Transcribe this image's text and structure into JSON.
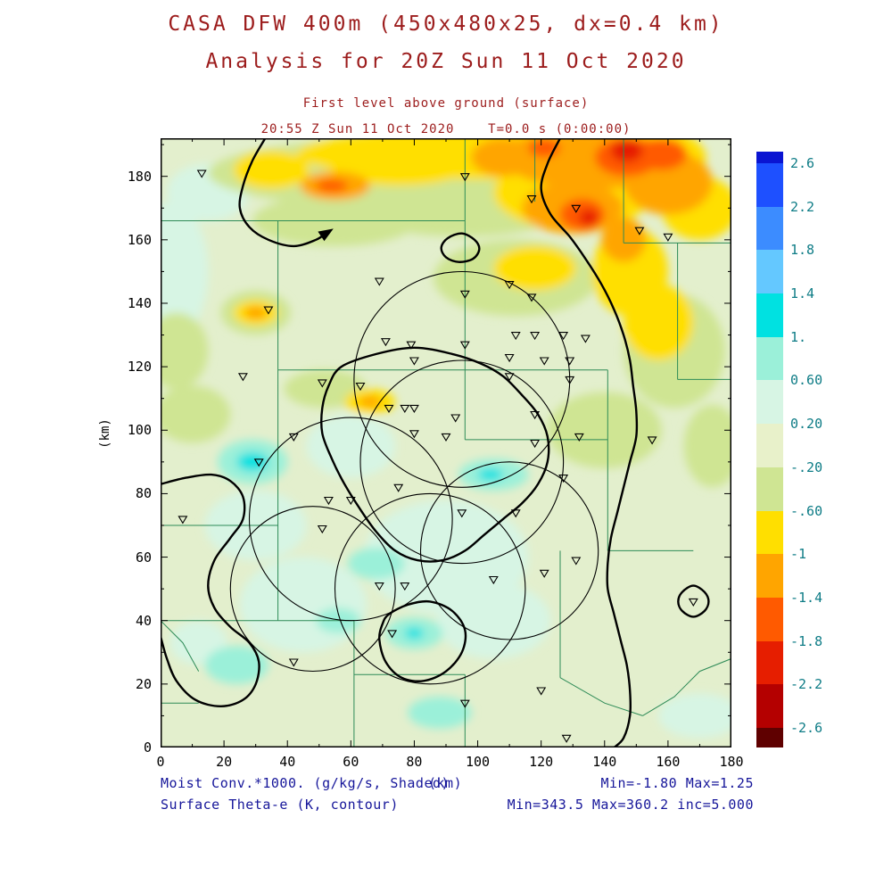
{
  "header": {
    "title_line1": "CASA DFW 400m (450x480x25, dx=0.4 km)",
    "title_line2": "Analysis for 20Z Sun 11 Oct 2020",
    "subtitle_line1": "First level above ground (surface)",
    "subtitle_line2": "20:55 Z Sun 11 Oct 2020    T=0.0 s (0:00:00)",
    "title_color": "#9c1c1c"
  },
  "axes": {
    "y_axis_label": "(km)"
  },
  "footer": {
    "shaded_label": "Moist Conv.*1000. (g/kg/s, Shaded)",
    "x_unit": "(km)",
    "shaded_minmax": "Min=-1.80 Max=1.25",
    "contour_label": "Surface Theta-e (K, contour)",
    "contour_minmax": "Min=343.5 Max=360.2 inc=5.000",
    "text_color": "#16169a"
  },
  "chart_data": {
    "type": "heatmap",
    "subtype": "filled-contour-weather-map with theta-e contours, radar range rings and station markers",
    "title": "CASA DFW 400m (450x480x25, dx=0.4 km) Analysis for 20Z Sun 11 Oct 2020",
    "subtitle": "First level above ground (surface), 20:55 Z Sun 11 Oct 2020, T=0.0 s (0:00:00)",
    "xlabel": "(km)",
    "ylabel": "(km)",
    "xlim": [
      0,
      180
    ],
    "ylim": [
      0,
      192
    ],
    "x_major_ticks": [
      0,
      20,
      40,
      60,
      80,
      100,
      120,
      140,
      160,
      180
    ],
    "y_major_ticks": [
      0,
      20,
      40,
      60,
      80,
      100,
      120,
      140,
      160,
      180
    ],
    "minor_tick_step_km": 10,
    "shaded_field": {
      "name": "Moist Conv.*1000. (g/kg/s)",
      "min": -1.8,
      "max": 1.25
    },
    "contour_field": {
      "name": "Surface Theta-e (K)",
      "min": 343.5,
      "max": 360.2,
      "inc": 5.0
    },
    "colorbar": {
      "tick_labels": [
        "2.6",
        "2.2",
        "1.8",
        "1.4",
        "1.",
        "0.60",
        "0.20",
        "-.20",
        "-.60",
        "-1",
        "-1.4",
        "-1.8",
        "-2.2",
        "-2.6"
      ],
      "levels_top_to_bottom": [
        2.6,
        2.2,
        1.8,
        1.4,
        1.0,
        0.6,
        0.2,
        -0.2,
        -0.6,
        -1.0,
        -1.4,
        -1.8,
        -2.2,
        -2.6
      ],
      "segment_colors_top_to_bottom": [
        "#0a14d2",
        "#1e50ff",
        "#3c8cff",
        "#64c8ff",
        "#00e1e1",
        "#9bf0d9",
        "#d7f5e4",
        "#e8f1ca",
        "#cfe593",
        "#ffdf00",
        "#ffa500",
        "#ff5a00",
        "#e61e00",
        "#b40000",
        "#5f0000"
      ],
      "label_color": "#0e7c86"
    },
    "base_color": "#e3efcd",
    "county_color": "#2e8b57",
    "field_blobs": [
      [
        45,
        45,
        20,
        15,
        "#d7f5e4"
      ],
      [
        90,
        60,
        26,
        18,
        "#d7f5e4"
      ],
      [
        30,
        70,
        16,
        11,
        "#d7f5e4"
      ],
      [
        3,
        150,
        12,
        22,
        "#d7f5e4"
      ],
      [
        15,
        175,
        13,
        9,
        "#d7f5e4"
      ],
      [
        170,
        10,
        13,
        7,
        "#d7f5e4"
      ],
      [
        12,
        33,
        9,
        7,
        "#d7f5e4"
      ],
      [
        60,
        95,
        14,
        10,
        "#d7f5e4"
      ],
      [
        105,
        40,
        18,
        12,
        "#d7f5e4"
      ],
      [
        90,
        181,
        75,
        12,
        "#cfe593"
      ],
      [
        95,
        170,
        34,
        9,
        "#cfe593"
      ],
      [
        55,
        166,
        26,
        8,
        "#cfe593"
      ],
      [
        162,
        125,
        16,
        18,
        "#cfe593"
      ],
      [
        112,
        148,
        26,
        12,
        "#cfe593"
      ],
      [
        10,
        105,
        12,
        9,
        "#cfe593"
      ],
      [
        5,
        125,
        10,
        12,
        "#cfe593"
      ],
      [
        174,
        95,
        9,
        13,
        "#cfe593"
      ],
      [
        52,
        113,
        13,
        6,
        "#cfe593"
      ],
      [
        30,
        137,
        11,
        7,
        "#cfe593"
      ],
      [
        140,
        100,
        18,
        12,
        "#cfe593"
      ],
      [
        105,
        187,
        62,
        8,
        "#ffdf00"
      ],
      [
        75,
        183,
        22,
        6,
        "#ffdf00"
      ],
      [
        35,
        182,
        12,
        6,
        "#ffdf00"
      ],
      [
        130,
        175,
        25,
        12,
        "#ffdf00"
      ],
      [
        148,
        150,
        12,
        14,
        "#ffdf00"
      ],
      [
        157,
        134,
        11,
        12,
        "#ffdf00"
      ],
      [
        170,
        170,
        12,
        10,
        "#ffdf00"
      ],
      [
        118,
        151,
        13,
        7,
        "#ffdf00"
      ],
      [
        30,
        137,
        7,
        4,
        "#ffdf00"
      ],
      [
        66,
        109,
        8,
        4,
        "#ffdf00"
      ],
      [
        150,
        186,
        22,
        10,
        "#ffdf00"
      ],
      [
        137,
        185,
        28,
        9,
        "#ffa500"
      ],
      [
        130,
        170,
        16,
        8,
        "#ffa500"
      ],
      [
        160,
        178,
        14,
        10,
        "#ffa500"
      ],
      [
        108,
        186,
        10,
        6,
        "#ffa500"
      ],
      [
        55,
        177,
        11,
        4.5,
        "#ffa500"
      ],
      [
        146,
        160,
        7,
        7,
        "#ffa500"
      ],
      [
        66,
        109,
        3.5,
        1.8,
        "#ffa500"
      ],
      [
        30,
        137,
        3.5,
        2,
        "#ffa500"
      ],
      [
        120,
        188,
        10,
        5,
        "#ffa500"
      ],
      [
        147,
        186,
        10,
        6,
        "#ff5a00"
      ],
      [
        158,
        187,
        8,
        5,
        "#ff5a00"
      ],
      [
        133,
        168,
        7,
        5,
        "#ff5a00"
      ],
      [
        54,
        177,
        5,
        2,
        "#ff5a00"
      ],
      [
        121,
        189,
        5,
        3,
        "#ff5a00"
      ],
      [
        147,
        188,
        5,
        3.5,
        "#e61e00"
      ],
      [
        135,
        167,
        3,
        2.5,
        "#e61e00"
      ],
      [
        29,
        90,
        11,
        7,
        "#9bf0d9"
      ],
      [
        105,
        86,
        11,
        5,
        "#9bf0d9"
      ],
      [
        68,
        58,
        9,
        5,
        "#9bf0d9"
      ],
      [
        80,
        36,
        9,
        5,
        "#9bf0d9"
      ],
      [
        24,
        26,
        10,
        6,
        "#9bf0d9"
      ],
      [
        88,
        11,
        10,
        5,
        "#9bf0d9"
      ],
      [
        56,
        40,
        7,
        4,
        "#9bf0d9"
      ],
      [
        29,
        90,
        5,
        3,
        "#00e1e1"
      ],
      [
        104,
        86,
        4,
        2,
        "#00e1e1"
      ],
      [
        80,
        36,
        3,
        1.8,
        "#00e1e1"
      ]
    ],
    "county_segments": [
      [
        [
          0,
          166
        ],
        [
          96,
          166
        ]
      ],
      [
        [
          96,
          192
        ],
        [
          96,
          97
        ]
      ],
      [
        [
          37,
          166
        ],
        [
          37,
          40
        ]
      ],
      [
        [
          37,
          119
        ],
        [
          141,
          119
        ]
      ],
      [
        [
          0,
          70
        ],
        [
          37,
          70
        ]
      ],
      [
        [
          146,
          192
        ],
        [
          146,
          159
        ]
      ],
      [
        [
          146,
          159
        ],
        [
          180,
          159
        ]
      ],
      [
        [
          163,
          159
        ],
        [
          163,
          116
        ]
      ],
      [
        [
          163,
          116
        ],
        [
          180,
          116
        ]
      ],
      [
        [
          96,
          97
        ],
        [
          141,
          97
        ]
      ],
      [
        [
          141,
          119
        ],
        [
          141,
          62
        ]
      ],
      [
        [
          141,
          62
        ],
        [
          168,
          62
        ]
      ],
      [
        [
          0,
          40
        ],
        [
          37,
          40
        ]
      ],
      [
        [
          37,
          40
        ],
        [
          61,
          40
        ]
      ],
      [
        [
          61,
          40
        ],
        [
          61,
          0
        ]
      ],
      [
        [
          61,
          23
        ],
        [
          96,
          23
        ]
      ],
      [
        [
          96,
          23
        ],
        [
          96,
          0
        ]
      ],
      [
        [
          126,
          62
        ],
        [
          126,
          22
        ]
      ],
      [
        [
          126,
          22
        ],
        [
          140,
          14
        ],
        [
          152,
          10
        ]
      ],
      [
        [
          152,
          10
        ],
        [
          162,
          16
        ],
        [
          170,
          24
        ],
        [
          180,
          28
        ]
      ],
      [
        [
          0,
          40
        ],
        [
          7,
          33
        ],
        [
          12,
          24
        ]
      ],
      [
        [
          0,
          14
        ],
        [
          12,
          14
        ]
      ],
      [
        [
          118,
          192
        ],
        [
          118,
          172
        ]
      ]
    ],
    "range_rings": [
      [
        95,
        116,
        34
      ],
      [
        95,
        90,
        32
      ],
      [
        60,
        72,
        32
      ],
      [
        85,
        50,
        30
      ],
      [
        110,
        62,
        28
      ],
      [
        48,
        50,
        26
      ]
    ],
    "theta_e_contours": [
      {
        "closed": false,
        "pts": [
          [
            33,
            192
          ],
          [
            29,
            185
          ],
          [
            26,
            177
          ],
          [
            25,
            170
          ],
          [
            28,
            164
          ],
          [
            34,
            160
          ],
          [
            42,
            158
          ],
          [
            49,
            160
          ],
          [
            52,
            162
          ]
        ]
      },
      {
        "closed": true,
        "pts": [
          [
            95,
            162
          ],
          [
            99,
            160
          ],
          [
            100.5,
            157
          ],
          [
            98.5,
            154
          ],
          [
            94,
            153
          ],
          [
            90,
            154.5
          ],
          [
            88.5,
            157.5
          ],
          [
            90.5,
            160.5
          ]
        ]
      },
      {
        "closed": false,
        "pts": [
          [
            126,
            192
          ],
          [
            122,
            184
          ],
          [
            120,
            176
          ],
          [
            123,
            168
          ],
          [
            129,
            161
          ],
          [
            134,
            154
          ],
          [
            139,
            146
          ],
          [
            143,
            138
          ],
          [
            146,
            130
          ],
          [
            148,
            122
          ],
          [
            149,
            114
          ],
          [
            150,
            106
          ],
          [
            150,
            98
          ],
          [
            148,
            90
          ],
          [
            146,
            82
          ],
          [
            144,
            74
          ],
          [
            142,
            66
          ],
          [
            141,
            58
          ],
          [
            141,
            50
          ],
          [
            143,
            42
          ],
          [
            145,
            34
          ],
          [
            147,
            26
          ],
          [
            148,
            18
          ],
          [
            148,
            10
          ],
          [
            146,
            3
          ],
          [
            143,
            0
          ]
        ]
      },
      {
        "closed": false,
        "pts": [
          [
            0,
            83
          ],
          [
            8,
            85
          ],
          [
            16,
            86
          ],
          [
            22,
            84
          ],
          [
            26,
            79
          ],
          [
            26,
            72
          ],
          [
            22,
            66
          ],
          [
            17,
            59
          ],
          [
            15,
            51
          ],
          [
            17,
            44
          ],
          [
            22,
            38
          ],
          [
            28,
            33
          ],
          [
            31,
            27
          ],
          [
            30,
            20
          ],
          [
            26,
            15
          ],
          [
            19,
            13
          ],
          [
            11,
            15
          ],
          [
            5,
            21
          ],
          [
            2,
            28
          ],
          [
            0,
            35
          ]
        ]
      },
      {
        "closed": true,
        "pts": [
          [
            72,
            42
          ],
          [
            78,
            45
          ],
          [
            85,
            46
          ],
          [
            92,
            43
          ],
          [
            96,
            37
          ],
          [
            95,
            30
          ],
          [
            90,
            24
          ],
          [
            83,
            21
          ],
          [
            76,
            22
          ],
          [
            71,
            27
          ],
          [
            69,
            34
          ],
          [
            70,
            39
          ]
        ]
      },
      {
        "closed": true,
        "pts": [
          [
            57,
            120
          ],
          [
            68,
            124
          ],
          [
            80,
            126
          ],
          [
            92,
            124
          ],
          [
            101,
            121
          ],
          [
            108,
            117
          ],
          [
            114,
            111
          ],
          [
            119,
            105
          ],
          [
            122,
            98
          ],
          [
            122,
            90
          ],
          [
            119,
            83
          ],
          [
            114,
            77
          ],
          [
            108,
            72
          ],
          [
            102,
            67
          ],
          [
            96,
            62
          ],
          [
            89,
            59
          ],
          [
            81,
            59
          ],
          [
            74,
            62
          ],
          [
            68,
            68
          ],
          [
            63,
            75
          ],
          [
            58,
            83
          ],
          [
            54,
            91
          ],
          [
            51,
            99
          ],
          [
            51,
            107
          ],
          [
            53,
            114
          ]
        ]
      },
      {
        "closed": true,
        "pts": [
          [
            168,
            51
          ],
          [
            171.5,
            49
          ],
          [
            172.8,
            46
          ],
          [
            171.5,
            43
          ],
          [
            168,
            41.2
          ],
          [
            164.5,
            43
          ],
          [
            163.2,
            46
          ],
          [
            164.5,
            49
          ]
        ]
      }
    ],
    "arrowhead": [
      [
        54.5,
        163.5
      ],
      [
        49.6,
        162.6
      ],
      [
        51.6,
        159.6
      ]
    ],
    "stations": [
      [
        13,
        181
      ],
      [
        96,
        180
      ],
      [
        117,
        173
      ],
      [
        131,
        170
      ],
      [
        151,
        163
      ],
      [
        160,
        161
      ],
      [
        69,
        147
      ],
      [
        96,
        143
      ],
      [
        110,
        146
      ],
      [
        117,
        142
      ],
      [
        34,
        138
      ],
      [
        71,
        128
      ],
      [
        79,
        127
      ],
      [
        96,
        127
      ],
      [
        112,
        130
      ],
      [
        118,
        130
      ],
      [
        127,
        130
      ],
      [
        134,
        129
      ],
      [
        80,
        122
      ],
      [
        110,
        123
      ],
      [
        121,
        122
      ],
      [
        129,
        122
      ],
      [
        26,
        117
      ],
      [
        51,
        115
      ],
      [
        63,
        114
      ],
      [
        110,
        117
      ],
      [
        129,
        116
      ],
      [
        72,
        107
      ],
      [
        77,
        107
      ],
      [
        80,
        107
      ],
      [
        93,
        104
      ],
      [
        118,
        105
      ],
      [
        42,
        98
      ],
      [
        80,
        99
      ],
      [
        90,
        98
      ],
      [
        118,
        96
      ],
      [
        132,
        98
      ],
      [
        155,
        97
      ],
      [
        31,
        90
      ],
      [
        75,
        82
      ],
      [
        127,
        85
      ],
      [
        53,
        78
      ],
      [
        60,
        78
      ],
      [
        95,
        74
      ],
      [
        112,
        74
      ],
      [
        7,
        72
      ],
      [
        51,
        69
      ],
      [
        131,
        59
      ],
      [
        105,
        53
      ],
      [
        121,
        55
      ],
      [
        69,
        51
      ],
      [
        77,
        51
      ],
      [
        73,
        36
      ],
      [
        42,
        27
      ],
      [
        96,
        14
      ],
      [
        120,
        18
      ],
      [
        128,
        3
      ],
      [
        168,
        46
      ]
    ]
  }
}
